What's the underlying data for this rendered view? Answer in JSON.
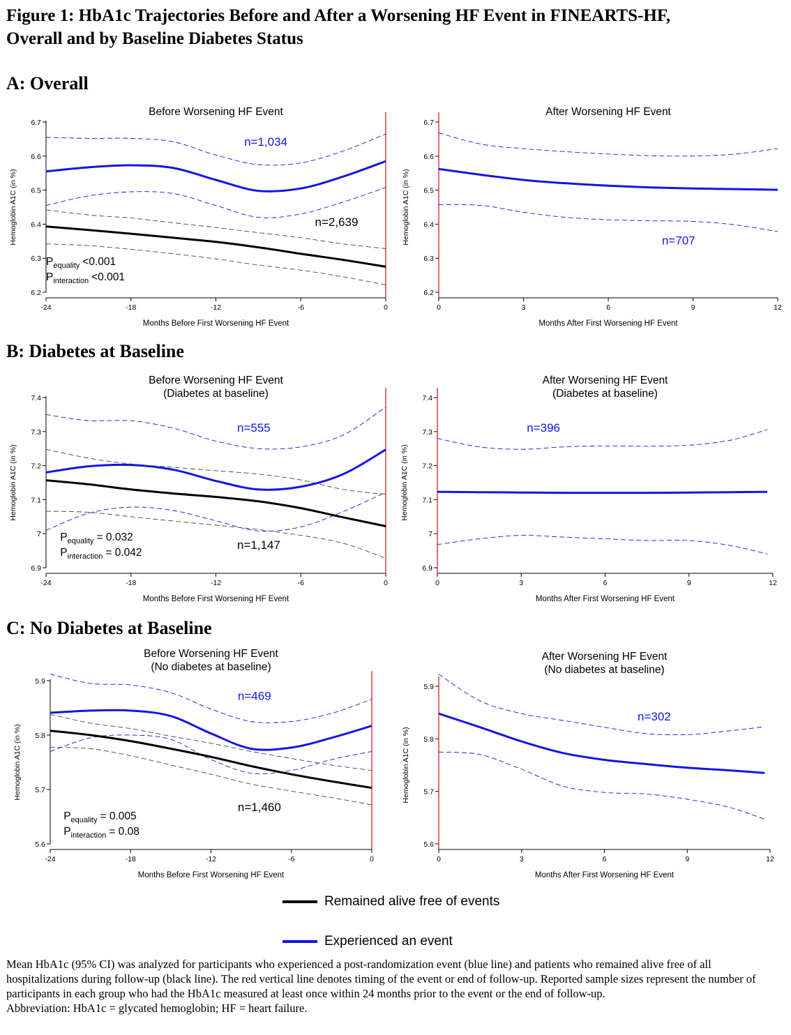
{
  "title_lines": [
    "Figure 1: HbA1c Trajectories Before and After a Worsening HF Event in FINEARTS-HF,",
    "Overall and by Baseline Diabetes Status"
  ],
  "sections": [
    {
      "label": "A: Overall"
    },
    {
      "label": "B: Diabetes at Baseline"
    },
    {
      "label": "C: No Diabetes at Baseline"
    }
  ],
  "colors": {
    "event": "#1414e6",
    "no_event": "#000000",
    "ci_black": "#444444",
    "vline": "#d42020",
    "axis": "#000000"
  },
  "chart_data": [
    {
      "panel": "A-before",
      "type": "line",
      "title": "Before Worsening HF Event",
      "subtitle": "",
      "xlabel": "Months Before First Worsening HF Event",
      "ylabel": "Hemoglobin A1C (in %)",
      "xlim": [
        -24,
        0
      ],
      "ylim": [
        6.2,
        6.7
      ],
      "xticks": [
        -24,
        -18,
        -12,
        -6,
        0
      ],
      "xtick_labels": [
        "-24",
        "-18",
        "-12",
        "-6",
        "0"
      ],
      "yticks": [
        6.2,
        6.3,
        6.4,
        6.5,
        6.6,
        6.7
      ],
      "ytick_labels": [
        "6.2",
        "6.3",
        "6.4",
        "6.5",
        "6.6",
        "6.7"
      ],
      "vline_x": 0,
      "series": [
        {
          "name": "Experienced an event",
          "role": "event",
          "x": [
            -24,
            -21,
            -18,
            -15,
            -12,
            -9,
            -6,
            -3,
            0
          ],
          "y": [
            6.555,
            6.567,
            6.573,
            6.565,
            6.53,
            6.498,
            6.505,
            6.54,
            6.585
          ],
          "lower": [
            6.455,
            6.483,
            6.495,
            6.49,
            6.455,
            6.42,
            6.43,
            6.465,
            6.508
          ],
          "upper": [
            6.655,
            6.652,
            6.652,
            6.642,
            6.603,
            6.575,
            6.58,
            6.615,
            6.665
          ]
        },
        {
          "name": "Remained alive free of events",
          "role": "no_event",
          "x": [
            -24,
            -21,
            -18,
            -15,
            -12,
            -9,
            -6,
            -3,
            0
          ],
          "y": [
            6.393,
            6.383,
            6.372,
            6.36,
            6.348,
            6.332,
            6.313,
            6.295,
            6.275
          ],
          "lower": [
            6.342,
            6.337,
            6.326,
            6.313,
            6.298,
            6.28,
            6.265,
            6.245,
            6.222
          ],
          "upper": [
            6.442,
            6.427,
            6.418,
            6.404,
            6.39,
            6.375,
            6.36,
            6.342,
            6.328
          ]
        }
      ],
      "annotations": [
        {
          "text": "n=1,034",
          "color": "event",
          "x": -10,
          "y": 6.63
        },
        {
          "text": "n=2,639",
          "color": "no_event",
          "x": -5,
          "y": 6.395
        }
      ],
      "p_values": [
        {
          "sub": "equality",
          "value": "<0.001"
        },
        {
          "sub": "interaction",
          "value": "<0.001"
        }
      ],
      "p_pos": {
        "x": -24,
        "y": 6.28
      }
    },
    {
      "panel": "A-after",
      "type": "line",
      "title": "After Worsening HF Event",
      "subtitle": "",
      "xlabel": "Months After First Worsening HF Event",
      "ylabel": "Hemoglobin A1C (in %)",
      "xlim": [
        0,
        12
      ],
      "ylim": [
        6.2,
        6.7
      ],
      "xticks": [
        0,
        3,
        6,
        9,
        12
      ],
      "xtick_labels": [
        "0",
        "3",
        "6",
        "9",
        "12"
      ],
      "yticks": [
        6.2,
        6.3,
        6.4,
        6.5,
        6.6,
        6.7
      ],
      "ytick_labels": [
        "6.2",
        "6.3",
        "6.4",
        "6.5",
        "6.6",
        "6.7"
      ],
      "vline_x": 0,
      "series": [
        {
          "name": "Experienced an event",
          "role": "event",
          "x": [
            0,
            1.5,
            3,
            4.5,
            6,
            7.5,
            9,
            10.5,
            12
          ],
          "y": [
            6.562,
            6.545,
            6.53,
            6.52,
            6.513,
            6.508,
            6.505,
            6.503,
            6.501
          ],
          "lower": [
            6.457,
            6.455,
            6.435,
            6.42,
            6.413,
            6.41,
            6.408,
            6.398,
            6.378
          ],
          "upper": [
            6.668,
            6.635,
            6.622,
            6.613,
            6.606,
            6.601,
            6.6,
            6.606,
            6.622
          ]
        }
      ],
      "annotations": [
        {
          "text": "n=707",
          "color": "event",
          "x": 7.9,
          "y": 6.34
        }
      ],
      "p_values": []
    },
    {
      "panel": "B-before",
      "type": "line",
      "title": "Before Worsening HF Event",
      "subtitle": "(Diabetes at baseline)",
      "xlabel": "Months Before First Worsening HF Event",
      "ylabel": "Hemoglobin A1C (in %)",
      "xlim": [
        -24,
        0
      ],
      "ylim": [
        6.9,
        7.4
      ],
      "xticks": [
        -24,
        -18,
        -12,
        -6,
        0
      ],
      "xtick_labels": [
        "-24",
        "-18",
        "-12",
        "-6",
        "0"
      ],
      "yticks": [
        6.9,
        7.0,
        7.1,
        7.2,
        7.3,
        7.4
      ],
      "ytick_labels": [
        "6.9",
        "7",
        "7.1",
        "7.2",
        "7.3",
        "7.4"
      ],
      "vline_x": 0,
      "series": [
        {
          "name": "Experienced an event",
          "role": "event",
          "x": [
            -24,
            -21,
            -18,
            -15,
            -12,
            -9,
            -6,
            -3,
            0
          ],
          "y": [
            7.18,
            7.198,
            7.202,
            7.188,
            7.155,
            7.13,
            7.138,
            7.175,
            7.247
          ],
          "lower": [
            7.01,
            7.06,
            7.078,
            7.068,
            7.038,
            7.008,
            7.02,
            7.065,
            7.122
          ],
          "upper": [
            7.35,
            7.332,
            7.332,
            7.31,
            7.272,
            7.25,
            7.255,
            7.29,
            7.372
          ]
        },
        {
          "name": "Remained alive free of events",
          "role": "no_event",
          "x": [
            -24,
            -21,
            -18,
            -15,
            -12,
            -9,
            -6,
            -3,
            0
          ],
          "y": [
            7.157,
            7.145,
            7.13,
            7.118,
            7.108,
            7.095,
            7.075,
            7.048,
            7.022
          ],
          "lower": [
            7.066,
            7.063,
            7.05,
            7.037,
            7.025,
            7.012,
            6.995,
            6.972,
            6.928
          ],
          "upper": [
            7.248,
            7.222,
            7.205,
            7.195,
            7.185,
            7.175,
            7.158,
            7.13,
            7.116
          ]
        }
      ],
      "annotations": [
        {
          "text": "n=555",
          "color": "event",
          "x": -10.5,
          "y": 7.3
        },
        {
          "text": "n=1,147",
          "color": "no_event",
          "x": -10.5,
          "y": 6.955
        }
      ],
      "p_values": [
        {
          "sub": "equality",
          "value": "= 0.032"
        },
        {
          "sub": "interaction",
          "value": "= 0.042"
        }
      ],
      "p_pos": {
        "x": -23,
        "y": 6.98
      }
    },
    {
      "panel": "B-after",
      "type": "line",
      "title": "After Worsening HF Event",
      "subtitle": "(Diabetes at baseline)",
      "xlabel": "Months After First Worsening HF Event",
      "ylabel": "Hemoglobin A1C (in %)",
      "xlim": [
        0,
        12
      ],
      "ylim": [
        6.9,
        7.4
      ],
      "xticks": [
        0,
        3,
        6,
        9,
        12
      ],
      "xtick_labels": [
        "0",
        "3",
        "6",
        "9",
        "12"
      ],
      "yticks": [
        6.9,
        7.0,
        7.1,
        7.2,
        7.3,
        7.4
      ],
      "ytick_labels": [
        "6.9",
        "7",
        "7.1",
        "7.2",
        "7.3",
        "7.4"
      ],
      "vline_x": 0,
      "series": [
        {
          "name": "Experienced an event",
          "role": "event",
          "x": [
            0,
            1.5,
            3,
            4.5,
            6,
            7.5,
            9,
            10.5,
            11.8
          ],
          "y": [
            7.123,
            7.122,
            7.121,
            7.12,
            7.12,
            7.12,
            7.121,
            7.122,
            7.123
          ],
          "lower": [
            6.968,
            6.985,
            6.995,
            6.99,
            6.985,
            6.98,
            6.98,
            6.965,
            6.94
          ],
          "upper": [
            7.28,
            7.255,
            7.248,
            7.255,
            7.258,
            7.257,
            7.26,
            7.275,
            7.306
          ]
        }
      ],
      "annotations": [
        {
          "text": "n=396",
          "color": "event",
          "x": 3.2,
          "y": 7.3
        }
      ],
      "p_values": []
    },
    {
      "panel": "C-before",
      "type": "line",
      "title": "Before Worsening HF Event",
      "subtitle": "(No diabetes at baseline)",
      "xlabel": "Months Before First Worsening HF Event",
      "ylabel": "Hemoglobin A1C (in %)",
      "xlim": [
        -24,
        0
      ],
      "ylim": [
        5.6,
        5.9
      ],
      "xticks": [
        -24,
        -18,
        -12,
        -6,
        0
      ],
      "xtick_labels": [
        "-24",
        "-18",
        "-12",
        "-6",
        "0"
      ],
      "yticks": [
        5.6,
        5.7,
        5.8,
        5.9
      ],
      "ytick_labels": [
        "5.6",
        "5.7",
        "5.8",
        "5.9"
      ],
      "vline_x": 0,
      "series": [
        {
          "name": "Experienced an event",
          "role": "event",
          "x": [
            -24,
            -21,
            -18,
            -15,
            -12,
            -9,
            -6,
            -3,
            0
          ],
          "y": [
            5.841,
            5.845,
            5.845,
            5.835,
            5.803,
            5.775,
            5.777,
            5.795,
            5.817
          ],
          "lower": [
            5.77,
            5.795,
            5.8,
            5.792,
            5.755,
            5.73,
            5.735,
            5.755,
            5.77
          ],
          "upper": [
            5.912,
            5.895,
            5.892,
            5.878,
            5.848,
            5.825,
            5.825,
            5.84,
            5.866
          ]
        },
        {
          "name": "Remained alive free of events",
          "role": "no_event",
          "x": [
            -24,
            -21,
            -18,
            -15,
            -12,
            -9,
            -6,
            -3,
            0
          ],
          "y": [
            5.808,
            5.8,
            5.789,
            5.775,
            5.76,
            5.743,
            5.728,
            5.715,
            5.703
          ],
          "lower": [
            5.778,
            5.775,
            5.762,
            5.745,
            5.728,
            5.71,
            5.697,
            5.685,
            5.672
          ],
          "upper": [
            5.838,
            5.822,
            5.812,
            5.798,
            5.785,
            5.77,
            5.757,
            5.745,
            5.735
          ]
        }
      ],
      "annotations": [
        {
          "text": "n=469",
          "color": "event",
          "x": -10,
          "y": 5.865
        },
        {
          "text": "n=1,460",
          "color": "no_event",
          "x": -10,
          "y": 5.66
        }
      ],
      "p_values": [
        {
          "sub": "equality",
          "value": "= 0.005"
        },
        {
          "sub": "interaction",
          "value": "= 0.08"
        }
      ],
      "p_pos": {
        "x": -23,
        "y": 5.645
      }
    },
    {
      "panel": "C-after",
      "type": "line",
      "title": "After Worsening HF Event",
      "subtitle": "(No diabetes at baseline)",
      "xlabel": "Months After First Worsening HF Event",
      "ylabel": "Hemoglobin A1C (in %)",
      "xlim": [
        0,
        12
      ],
      "ylim": [
        5.6,
        5.9
      ],
      "xticks": [
        0,
        3,
        6,
        9,
        12
      ],
      "xtick_labels": [
        "0",
        "3",
        "6",
        "9",
        "12"
      ],
      "yticks": [
        5.6,
        5.7,
        5.8,
        5.9
      ],
      "ytick_labels": [
        "5.6",
        "5.7",
        "5.8",
        "5.9"
      ],
      "vline_x": 0,
      "series": [
        {
          "name": "Experienced an event",
          "role": "event",
          "x": [
            0,
            1.5,
            3,
            4.5,
            6,
            7.5,
            9,
            10.5,
            11.8
          ],
          "y": [
            5.848,
            5.822,
            5.795,
            5.773,
            5.76,
            5.752,
            5.745,
            5.74,
            5.735
          ],
          "lower": [
            5.775,
            5.77,
            5.742,
            5.71,
            5.698,
            5.695,
            5.685,
            5.67,
            5.647
          ],
          "upper": [
            5.923,
            5.872,
            5.848,
            5.835,
            5.822,
            5.81,
            5.808,
            5.815,
            5.823
          ]
        }
      ],
      "annotations": [
        {
          "text": "n=302",
          "color": "event",
          "x": 7.2,
          "y": 5.835
        }
      ],
      "p_values": []
    }
  ],
  "legend": [
    {
      "label": "Remained alive free of events",
      "color": "#000000"
    },
    {
      "label": "Experienced an event",
      "color": "#1414e6"
    }
  ],
  "caption": {
    "main": "Mean HbA1c (95% CI) was analyzed for participants who experienced a post-randomization event (blue line) and patients who remained alive free of all hospitalizations during follow-up (black line). The red vertical line denotes timing of the event or end of follow-up. Reported sample sizes represent the number of participants in each group who had the HbA1c measured at least once within 24 months prior to the event or the end of follow-up.",
    "abbreviation": "Abbreviation: HbA1c = glycated hemoglobin; HF = heart failure."
  }
}
